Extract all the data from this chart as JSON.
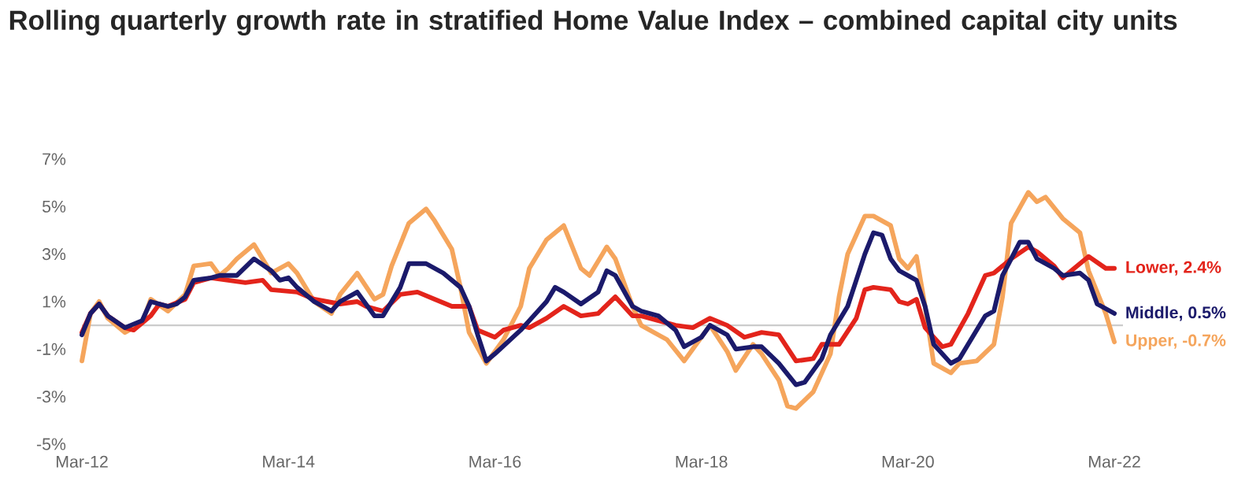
{
  "chart_data": {
    "type": "line",
    "title": "Rolling quarterly growth rate in stratified Home Value Index – combined capital city units",
    "xlim": [
      "2012-03",
      "2022-04"
    ],
    "ylim": [
      -5,
      7
    ],
    "xticks": [
      {
        "value": "2012-03",
        "label": "Mar-12"
      },
      {
        "value": "2014-03",
        "label": "Mar-14"
      },
      {
        "value": "2016-03",
        "label": "Mar-16"
      },
      {
        "value": "2018-03",
        "label": "Mar-18"
      },
      {
        "value": "2020-03",
        "label": "Mar-20"
      },
      {
        "value": "2022-03",
        "label": "Mar-22"
      }
    ],
    "yticks": [
      {
        "value": 7,
        "label": "7%"
      },
      {
        "value": 5,
        "label": "5%"
      },
      {
        "value": 3,
        "label": "3%"
      },
      {
        "value": 1,
        "label": "1%"
      },
      {
        "value": -1,
        "label": "-1%"
      },
      {
        "value": -3,
        "label": "-3%"
      },
      {
        "value": -5,
        "label": "-5%"
      }
    ],
    "grid": false,
    "ref_lines": [
      {
        "axis": "y",
        "value": 0,
        "color": "#cccccc"
      }
    ],
    "series": [
      {
        "name": "Upper, -0.7%",
        "color": "#f5a55c",
        "x": [
          "2012-03",
          "2012-04",
          "2012-05",
          "2012-06",
          "2012-08",
          "2012-10",
          "2012-11",
          "2013-01",
          "2013-03",
          "2013-04",
          "2013-06",
          "2013-07",
          "2013-08",
          "2013-09",
          "2013-11",
          "2014-01",
          "2014-03",
          "2014-04",
          "2014-06",
          "2014-08",
          "2014-09",
          "2014-11",
          "2015-01",
          "2015-02",
          "2015-03",
          "2015-05",
          "2015-07",
          "2015-08",
          "2015-10",
          "2015-11",
          "2015-12",
          "2016-02",
          "2016-04",
          "2016-06",
          "2016-07",
          "2016-09",
          "2016-11",
          "2017-01",
          "2017-02",
          "2017-04",
          "2017-05",
          "2017-07",
          "2017-08",
          "2017-10",
          "2017-11",
          "2018-01",
          "2018-02",
          "2018-04",
          "2018-06",
          "2018-07",
          "2018-09",
          "2018-10",
          "2018-12",
          "2019-01",
          "2019-02",
          "2019-04",
          "2019-06",
          "2019-07",
          "2019-08",
          "2019-09",
          "2019-10",
          "2019-11",
          "2020-01",
          "2020-02",
          "2020-03",
          "2020-04",
          "2020-05",
          "2020-06",
          "2020-08",
          "2020-09",
          "2020-11",
          "2021-01",
          "2021-02",
          "2021-03",
          "2021-05",
          "2021-06",
          "2021-07",
          "2021-09",
          "2021-11",
          "2021-12",
          "2022-02",
          "2022-03"
        ],
        "values": [
          -1.5,
          0.5,
          1.0,
          0.3,
          -0.3,
          0.1,
          1.1,
          0.6,
          1.3,
          2.5,
          2.6,
          2.1,
          2.4,
          2.8,
          3.4,
          2.2,
          2.6,
          2.2,
          1.0,
          0.5,
          1.3,
          2.2,
          1.1,
          1.3,
          2.5,
          4.3,
          4.9,
          4.4,
          3.2,
          1.6,
          -0.3,
          -1.6,
          -0.6,
          0.8,
          2.4,
          3.6,
          4.2,
          2.4,
          2.1,
          3.3,
          2.8,
          0.8,
          0.0,
          -0.4,
          -0.6,
          -1.5,
          -1.0,
          0.0,
          -1.1,
          -1.9,
          -0.8,
          -1.2,
          -2.3,
          -3.4,
          -3.5,
          -2.8,
          -1.2,
          1.2,
          3.0,
          3.8,
          4.6,
          4.6,
          4.2,
          2.8,
          2.4,
          2.9,
          0.8,
          -1.6,
          -2.0,
          -1.6,
          -1.5,
          -0.8,
          1.2,
          4.3,
          5.6,
          5.2,
          5.4,
          4.5,
          3.9,
          2.3,
          0.5,
          -0.7
        ]
      },
      {
        "name": "Lower, 2.4%",
        "color": "#e3241b",
        "x": [
          "2012-03",
          "2012-04",
          "2012-05",
          "2012-06",
          "2012-08",
          "2012-09",
          "2012-11",
          "2012-12",
          "2013-01",
          "2013-03",
          "2013-04",
          "2013-06",
          "2013-08",
          "2013-10",
          "2013-12",
          "2014-01",
          "2014-04",
          "2014-06",
          "2014-09",
          "2014-11",
          "2014-12",
          "2015-02",
          "2015-04",
          "2015-06",
          "2015-08",
          "2015-10",
          "2015-12",
          "2016-01",
          "2016-03",
          "2016-04",
          "2016-06",
          "2016-07",
          "2016-09",
          "2016-11",
          "2017-01",
          "2017-03",
          "2017-05",
          "2017-07",
          "2017-08",
          "2017-10",
          "2017-12",
          "2018-02",
          "2018-04",
          "2018-06",
          "2018-08",
          "2018-10",
          "2018-12",
          "2019-02",
          "2019-04",
          "2019-05",
          "2019-07",
          "2019-09",
          "2019-10",
          "2019-11",
          "2020-01",
          "2020-02",
          "2020-03",
          "2020-04",
          "2020-05",
          "2020-07",
          "2020-08",
          "2020-10",
          "2020-12",
          "2021-01",
          "2021-03",
          "2021-05",
          "2021-06",
          "2021-08",
          "2021-09",
          "2021-11",
          "2021-12",
          "2022-02",
          "2022-03"
        ],
        "values": [
          -0.3,
          0.5,
          0.9,
          0.4,
          -0.1,
          -0.2,
          0.4,
          0.9,
          0.8,
          1.1,
          1.8,
          2.0,
          1.9,
          1.8,
          1.9,
          1.5,
          1.4,
          1.1,
          0.9,
          1.0,
          0.8,
          0.6,
          1.3,
          1.4,
          1.1,
          0.8,
          0.8,
          -0.2,
          -0.5,
          -0.2,
          0.0,
          -0.1,
          0.3,
          0.8,
          0.4,
          0.5,
          1.2,
          0.4,
          0.4,
          0.2,
          0.0,
          -0.1,
          0.3,
          0.0,
          -0.5,
          -0.3,
          -0.4,
          -1.5,
          -1.4,
          -0.8,
          -0.8,
          0.3,
          1.5,
          1.6,
          1.5,
          1.0,
          0.9,
          1.1,
          -0.1,
          -0.9,
          -0.8,
          0.5,
          2.1,
          2.2,
          2.8,
          3.3,
          3.1,
          2.5,
          2.0,
          2.6,
          2.9,
          2.4,
          2.4
        ]
      },
      {
        "name": "Middle, 0.5%",
        "color": "#1b1a6b",
        "x": [
          "2012-03",
          "2012-04",
          "2012-05",
          "2012-06",
          "2012-08",
          "2012-10",
          "2012-11",
          "2013-01",
          "2013-02",
          "2013-03",
          "2013-04",
          "2013-06",
          "2013-07",
          "2013-09",
          "2013-11",
          "2014-01",
          "2014-02",
          "2014-03",
          "2014-04",
          "2014-06",
          "2014-08",
          "2014-09",
          "2014-11",
          "2015-01",
          "2015-02",
          "2015-04",
          "2015-05",
          "2015-07",
          "2015-09",
          "2015-11",
          "2015-12",
          "2016-01",
          "2016-02",
          "2016-03",
          "2016-06",
          "2016-07",
          "2016-09",
          "2016-10",
          "2016-11",
          "2017-01",
          "2017-03",
          "2017-04",
          "2017-05",
          "2017-07",
          "2017-08",
          "2017-10",
          "2017-12",
          "2018-01",
          "2018-03",
          "2018-04",
          "2018-06",
          "2018-07",
          "2018-09",
          "2018-10",
          "2018-12",
          "2019-02",
          "2019-03",
          "2019-05",
          "2019-06",
          "2019-08",
          "2019-09",
          "2019-10",
          "2019-11",
          "2019-12",
          "2020-01",
          "2020-02",
          "2020-04",
          "2020-05",
          "2020-06",
          "2020-08",
          "2020-09",
          "2020-10",
          "2020-12",
          "2021-01",
          "2021-02",
          "2021-04",
          "2021-05",
          "2021-06",
          "2021-08",
          "2021-09",
          "2021-11",
          "2021-12",
          "2022-01",
          "2022-03"
        ],
        "values": [
          -0.4,
          0.5,
          0.9,
          0.4,
          -0.1,
          0.2,
          1.0,
          0.8,
          0.9,
          1.2,
          1.9,
          2.0,
          2.1,
          2.1,
          2.8,
          2.3,
          1.9,
          2.0,
          1.6,
          1.0,
          0.6,
          1.0,
          1.4,
          0.4,
          0.4,
          1.6,
          2.6,
          2.6,
          2.2,
          1.6,
          0.8,
          -0.4,
          -1.5,
          -1.2,
          -0.2,
          0.2,
          1.0,
          1.6,
          1.4,
          0.9,
          1.4,
          2.3,
          2.1,
          0.8,
          0.6,
          0.4,
          -0.2,
          -0.9,
          -0.5,
          0.0,
          -0.4,
          -1.0,
          -0.9,
          -0.9,
          -1.6,
          -2.5,
          -2.4,
          -1.4,
          -0.4,
          0.8,
          1.9,
          3.0,
          3.9,
          3.8,
          2.8,
          2.3,
          1.9,
          0.8,
          -0.8,
          -1.6,
          -1.4,
          -0.8,
          0.4,
          0.6,
          2.1,
          3.5,
          3.5,
          2.8,
          2.4,
          2.1,
          2.2,
          1.9,
          0.9,
          0.5
        ]
      }
    ]
  }
}
